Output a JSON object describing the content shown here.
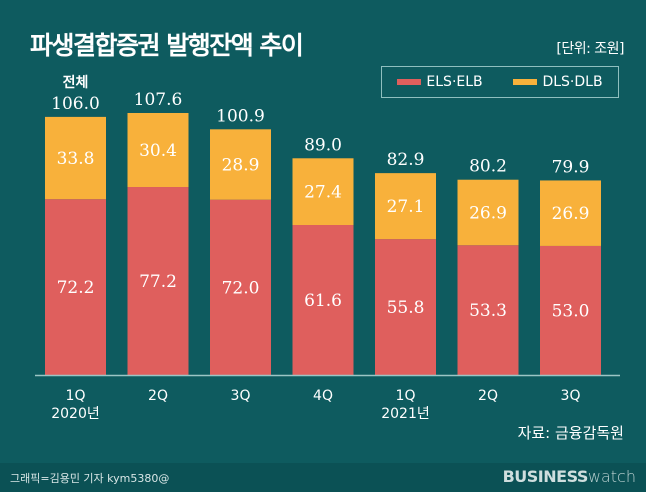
{
  "chart_data": {
    "type": "bar",
    "stacked": true,
    "title": "파생결합증권 발행잔액 추이",
    "unit_label": "[단위: 조원]",
    "total_label": "전체",
    "categories": [
      "1Q",
      "2Q",
      "3Q",
      "4Q",
      "1Q",
      "2Q",
      "3Q"
    ],
    "year_labels": [
      "2020년",
      "",
      "",
      "",
      "2021년",
      "",
      ""
    ],
    "series": [
      {
        "name": "ELS·ELB",
        "color": "#df5f5d",
        "values": [
          72.2,
          77.2,
          72.0,
          61.6,
          55.8,
          53.3,
          53.0
        ]
      },
      {
        "name": "DLS·DLB",
        "color": "#f8b13b",
        "values": [
          33.8,
          30.4,
          28.9,
          27.4,
          27.1,
          26.9,
          26.9
        ]
      }
    ],
    "totals": [
      106.0,
      107.6,
      100.9,
      89.0,
      82.9,
      80.2,
      79.9
    ],
    "legend_position": "top-right",
    "grid": false
  },
  "source": "자료: 금융감독원",
  "credit": "그래픽=김용민 기자 kym5380@",
  "logo": {
    "bold": "BUSINESS",
    "light": "watch"
  },
  "colors": {
    "background": "#0e5b5f",
    "axis": "#9cc5c5"
  }
}
